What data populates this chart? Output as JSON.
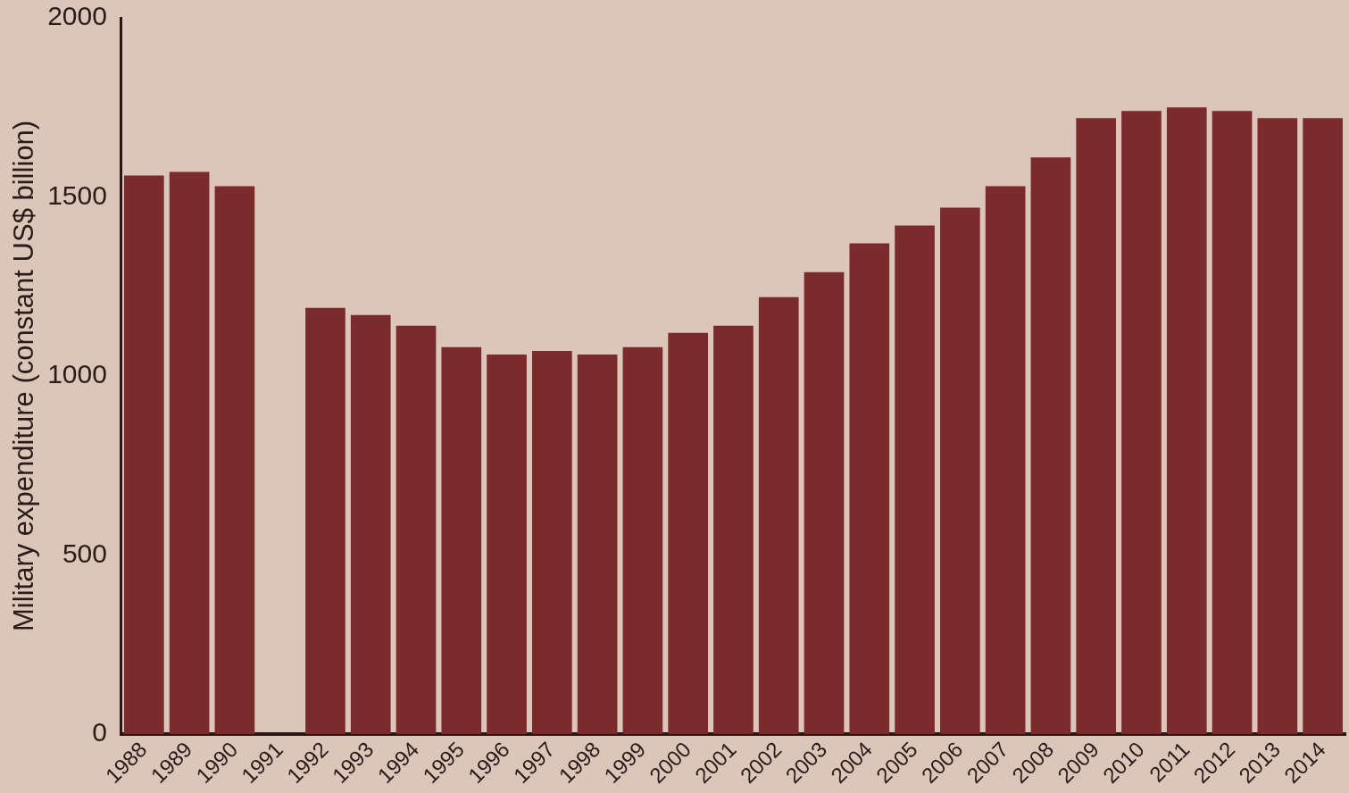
{
  "chart_data": {
    "type": "bar",
    "ylabel": "Military expenditure (constant US$ billion)",
    "categories": [
      "1988",
      "1989",
      "1990",
      "1991",
      "1992",
      "1993",
      "1994",
      "1995",
      "1996",
      "1997",
      "1998",
      "1999",
      "2000",
      "2001",
      "2002",
      "2003",
      "2004",
      "2005",
      "2006",
      "2007",
      "2008",
      "2009",
      "2010",
      "2011",
      "2012",
      "2013",
      "2014"
    ],
    "values": [
      1560,
      1570,
      1530,
      null,
      1190,
      1170,
      1140,
      1080,
      1060,
      1070,
      1060,
      1080,
      1120,
      1140,
      1220,
      1290,
      1370,
      1420,
      1470,
      1530,
      1610,
      1720,
      1740,
      1750,
      1740,
      1720,
      1720
    ],
    "color": "#7b2b2c",
    "ylim": [
      0,
      2000
    ],
    "yticks": [
      0,
      500,
      1000,
      1500,
      2000
    ],
    "grid": false,
    "legend": false
  }
}
